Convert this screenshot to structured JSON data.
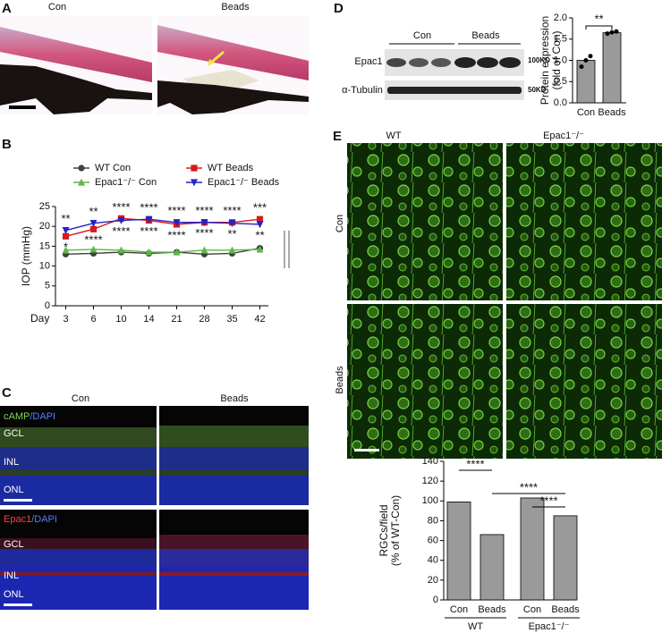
{
  "panels": {
    "a": {
      "label": "A",
      "con": "Con",
      "beads": "Beads"
    },
    "b": {
      "label": "B"
    },
    "c": {
      "label": "C",
      "con": "Con",
      "beads": "Beads",
      "stain_top_1": "cAMP",
      "stain_top_2": "/DAPI",
      "stain_bottom_1": "Epac1",
      "stain_bottom_2": "/DAPI",
      "layers_top": [
        "GCL",
        "INL",
        "ONL"
      ],
      "layers_bottom": [
        "GCL",
        "INL",
        "ONL"
      ]
    },
    "d": {
      "label": "D",
      "con": "Con",
      "beads": "Beads",
      "row_1": "Epac1",
      "row_2": "α-Tubulin",
      "size_1": "100KD",
      "size_2": "50KD"
    },
    "e": {
      "label": "E",
      "col_1": "WT",
      "col_2": "Epac1⁻/⁻",
      "row_1": "Con",
      "row_2": "Beads"
    }
  },
  "chart_data": [
    {
      "type": "line",
      "x_label": "Day",
      "y_label": "IOP (mmHg)",
      "categories": [
        "3",
        "6",
        "10",
        "14",
        "21",
        "28",
        "35",
        "42"
      ],
      "ylim": [
        0,
        25
      ],
      "yticks": [
        0,
        5,
        10,
        15,
        20,
        25
      ],
      "series": [
        {
          "name": "WT Con",
          "color": "#404040",
          "marker": "circle",
          "values": [
            13,
            13.2,
            13.5,
            13.2,
            13.5,
            13,
            13.2,
            14.5
          ]
        },
        {
          "name": "WT Beads",
          "color": "#d7191c",
          "marker": "square",
          "values": [
            17.5,
            19.3,
            22,
            21.5,
            20.5,
            21,
            21,
            21.8
          ]
        },
        {
          "name": "Epac1⁻/⁻ Con",
          "color": "#5cb846",
          "marker": "triangle",
          "values": [
            14,
            14.2,
            14,
            13.5,
            13.5,
            14,
            14,
            14.2
          ]
        },
        {
          "name": "Epac1⁻/⁻ Beads",
          "color": "#2323c8",
          "marker": "triangle-down",
          "values": [
            19,
            20.8,
            21.5,
            21.8,
            21,
            21,
            20.8,
            20.5
          ]
        }
      ],
      "stars_upper": [
        "**",
        "**",
        "****",
        "****",
        "****",
        "****",
        "****",
        "***"
      ],
      "stars_lower": [
        "*",
        "****",
        "****",
        "****",
        "****",
        "****",
        "**",
        "**"
      ]
    },
    {
      "type": "bar",
      "y_label": [
        "Protein expression",
        "(fold of Con)"
      ],
      "categories": [
        "Con",
        "Beads"
      ],
      "values": [
        1.0,
        1.65
      ],
      "color": "#9a9a9a",
      "points": [
        [
          0.85,
          1.0,
          1.1
        ],
        [
          1.63,
          1.66,
          1.68
        ]
      ],
      "ylim": [
        0,
        2
      ],
      "yticks": [
        {
          "value": 0,
          "label": "0.0"
        },
        {
          "value": 0.5,
          "label": "0.5"
        },
        {
          "value": 1,
          "label": "1.0"
        },
        {
          "value": 1.5,
          "label": "1.5"
        },
        {
          "value": 2,
          "label": "2.0"
        }
      ],
      "significance": [
        "**"
      ]
    },
    {
      "type": "bar",
      "y_label": [
        "RGCs/field",
        "(% of WT-Con)"
      ],
      "categories": [
        "Con",
        "Beads",
        "Con",
        "Beads"
      ],
      "groups": [
        "WT",
        "Epac1⁻/⁻"
      ],
      "values": [
        99,
        66,
        103,
        85
      ],
      "color": "#9a9a9a",
      "ylim": [
        0,
        140
      ],
      "yticks": [
        0,
        20,
        40,
        60,
        80,
        100,
        120,
        140
      ],
      "significance": [
        "****",
        "****",
        "****"
      ]
    }
  ]
}
